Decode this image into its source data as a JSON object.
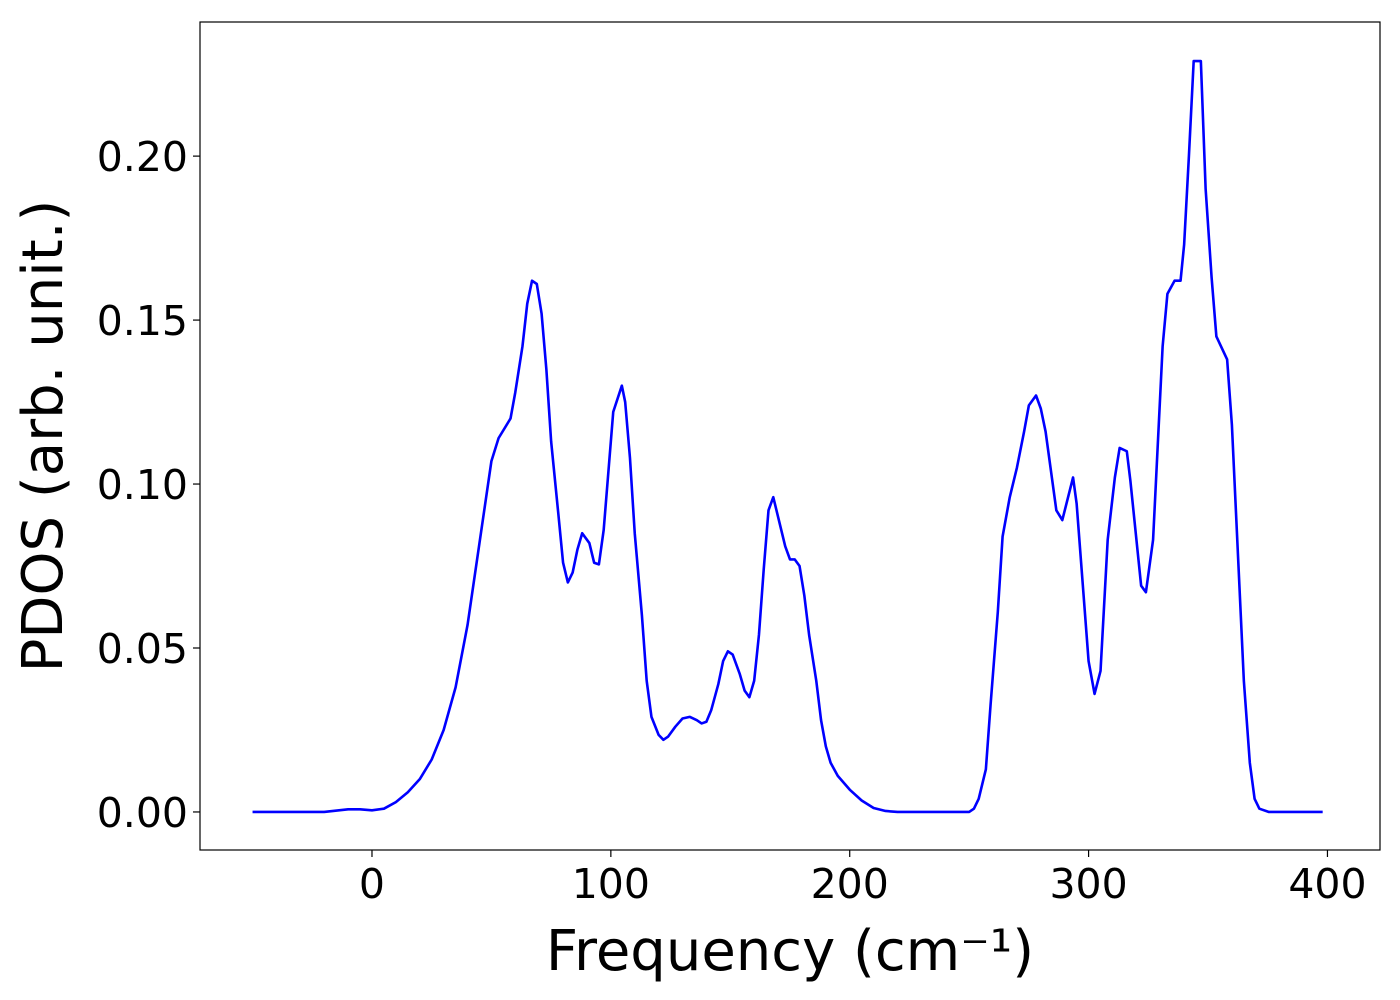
{
  "chart_data": {
    "type": "line",
    "xlabel": "Frequency (cm⁻¹)",
    "ylabel": "PDOS (arb. unit.)",
    "xlim": [
      -72,
      422
    ],
    "ylim": [
      -0.0116,
      0.2409
    ],
    "xticks": [
      0,
      100,
      200,
      300,
      400
    ],
    "yticks": [
      {
        "value": 0,
        "label": "0.00"
      },
      {
        "value": 0.05,
        "label": "0.05"
      },
      {
        "value": 0.1,
        "label": "0.10"
      },
      {
        "value": 0.15,
        "label": "0.15"
      },
      {
        "value": 0.2,
        "label": "0.20"
      }
    ],
    "grid": false,
    "x": [
      -50,
      -20,
      -10,
      -5,
      0,
      5,
      10,
      15,
      20,
      25,
      30,
      35,
      40,
      45,
      50,
      53,
      58,
      60,
      63,
      65,
      67,
      69,
      71,
      73,
      75,
      78,
      80,
      82,
      84,
      86,
      88,
      91,
      93,
      95,
      97,
      99,
      101,
      104.6,
      106,
      108,
      110,
      113,
      115,
      117,
      120,
      122,
      124,
      127,
      130,
      133,
      136,
      138,
      140,
      142,
      145,
      147,
      149,
      151,
      154,
      156,
      158,
      160,
      162,
      164,
      166,
      168,
      170,
      173,
      175,
      177,
      179,
      181,
      183,
      186,
      188,
      190,
      192,
      195,
      200,
      205,
      210,
      215,
      220,
      250,
      252,
      254,
      257,
      259,
      262,
      264,
      267,
      270,
      273,
      275,
      278,
      280,
      282,
      286.5,
      289,
      293.5,
      295,
      300,
      302.5,
      305,
      308,
      311,
      313,
      316,
      317.5,
      322,
      324,
      327,
      331,
      333,
      336,
      338.5,
      340,
      342,
      344,
      347,
      349,
      351.5,
      353.5,
      358,
      360,
      365,
      367.5,
      369.5,
      371.5,
      375.5,
      398
    ],
    "series": [
      {
        "name": "PDOS",
        "color": "#0000ff",
        "values": [
          0,
          0,
          0.0008,
          0.0008,
          0.0005,
          0.001,
          0.003,
          0.006,
          0.01,
          0.016,
          0.025,
          0.038,
          0.057,
          0.082,
          0.107,
          0.114,
          0.12,
          0.128,
          0.142,
          0.155,
          0.162,
          0.161,
          0.152,
          0.135,
          0.113,
          0.091,
          0.076,
          0.07,
          0.073,
          0.08,
          0.085,
          0.082,
          0.076,
          0.0755,
          0.086,
          0.104,
          0.122,
          0.13,
          0.125,
          0.108,
          0.085,
          0.06,
          0.04,
          0.029,
          0.0235,
          0.022,
          0.023,
          0.026,
          0.0285,
          0.029,
          0.028,
          0.027,
          0.0275,
          0.031,
          0.039,
          0.046,
          0.049,
          0.048,
          0.042,
          0.037,
          0.035,
          0.04,
          0.054,
          0.074,
          0.092,
          0.096,
          0.09,
          0.081,
          0.077,
          0.077,
          0.075,
          0.066,
          0.054,
          0.04,
          0.028,
          0.02,
          0.015,
          0.011,
          0.0068,
          0.0035,
          0.0012,
          0.0003,
          0,
          0,
          0.001,
          0.004,
          0.013,
          0.033,
          0.061,
          0.084,
          0.096,
          0.105,
          0.116,
          0.124,
          0.127,
          0.123,
          0.116,
          0.092,
          0.089,
          0.102,
          0.094,
          0.046,
          0.036,
          0.043,
          0.083,
          0.102,
          0.111,
          0.11,
          0.101,
          0.069,
          0.067,
          0.083,
          0.142,
          0.158,
          0.162,
          0.162,
          0.173,
          0.2,
          0.229,
          0.229,
          0.19,
          0.163,
          0.145,
          0.138,
          0.118,
          0.04,
          0.015,
          0.004,
          0.001,
          0,
          0
        ]
      }
    ]
  }
}
